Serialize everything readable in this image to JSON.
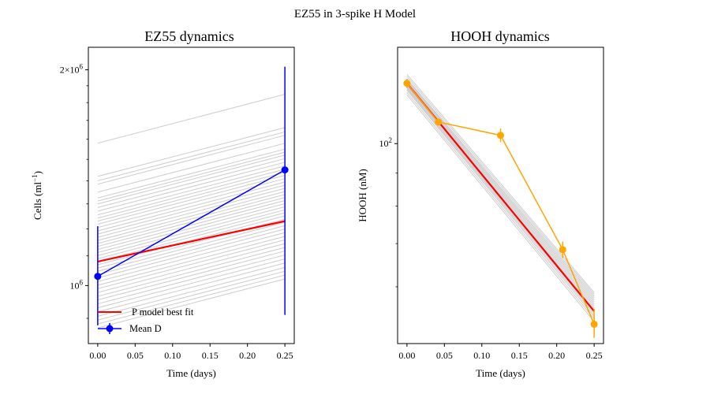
{
  "figure": {
    "title": "EZ55 in 3-spike H Model"
  },
  "chart_data": [
    {
      "type": "line",
      "title": "EZ55 dynamics",
      "xlabel": "Time (days)",
      "ylabel": "Cells (ml$^{-1}$)",
      "ylabel_base": "Cells (ml",
      "ylabel_sup": "−1",
      "ylabel_end": ")",
      "yscale": "log",
      "xlim": [
        -0.0125,
        0.2625
      ],
      "ylim": [
        830000,
        2150000
      ],
      "x_ticks": [
        0.0,
        0.05,
        0.1,
        0.15,
        0.2,
        0.25
      ],
      "x_tick_labels": [
        "0.00",
        "0.05",
        "0.10",
        "0.15",
        "0.20",
        "0.25"
      ],
      "y_major_ticks": [
        {
          "value": 1000000,
          "base": "10",
          "exp": "6",
          "prefix": ""
        },
        {
          "value": 2000000,
          "base": "10",
          "exp": "6",
          "prefix": "2×"
        }
      ],
      "y_minor_ticks": [
        900000,
        1100000,
        1200000,
        1300000,
        1400000,
        1500000,
        1600000,
        1700000,
        1800000,
        1900000
      ],
      "legend_position": "lower-left",
      "model_runs": {
        "color": "#cccccc",
        "x": [
          0.0,
          0.25
        ],
        "y0": [
          1580000,
          1420000,
          1400000,
          1385000,
          1350000,
          1325000,
          1312000,
          1300000,
          1285000,
          1270000,
          1255000,
          1242000,
          1230000,
          1218000,
          1205000,
          1192000,
          1180000,
          1168000,
          1156000,
          1145000,
          1134000,
          1123000,
          1112000,
          1101000,
          1090000,
          1080000,
          1069000,
          1058000,
          1047000,
          1036000,
          1025000,
          1013000,
          1001000,
          990000,
          978000,
          966000,
          955000,
          943000,
          931000,
          919000,
          906000,
          895000,
          884000,
          873000
        ],
        "growth": 1.17
      },
      "series": [
        {
          "name": "P model best fit",
          "color": "#ff0000",
          "x": [
            0.0,
            0.25
          ],
          "y": [
            1080000,
            1230000
          ]
        },
        {
          "name": "Mean D",
          "color": "#0000ff",
          "x": [
            0.0,
            0.25
          ],
          "y": [
            1030000,
            1450000
          ],
          "yerr_low": [
            880000,
            910000
          ],
          "yerr_high": [
            1210000,
            2020000
          ]
        }
      ]
    },
    {
      "type": "line",
      "title": "HOOH dynamics",
      "xlabel": "Time (days)",
      "ylabel": "HOOH (nM)",
      "yscale": "log",
      "xlim": [
        -0.0125,
        0.2625
      ],
      "ylim": [
        49,
        141
      ],
      "x_ticks": [
        0.0,
        0.05,
        0.1,
        0.15,
        0.2,
        0.25
      ],
      "x_tick_labels": [
        "0.00",
        "0.05",
        "0.10",
        "0.15",
        "0.20",
        "0.25"
      ],
      "y_major_ticks": [
        {
          "value": 100,
          "base": "10",
          "exp": "2",
          "prefix": ""
        }
      ],
      "y_minor_ticks": [
        60,
        70,
        80,
        90
      ],
      "model_runs": {
        "color": "#cccccc",
        "x": [
          0.0,
          0.25
        ],
        "y0": [
          128,
          127,
          126,
          125.5,
          125,
          124.5,
          124,
          123.5,
          123,
          122.5,
          122,
          121.5,
          121,
          120,
          119
        ],
        "y1": [
          58.8,
          58.4,
          58,
          57.6,
          57.2,
          56.8,
          56.4,
          56,
          55.6,
          55.2,
          54.8,
          54.4,
          54,
          53.5,
          53
        ]
      },
      "series": [
        {
          "name": "",
          "color": "#ff0000",
          "x": [
            0.0,
            0.25
          ],
          "y": [
            124,
            55
          ]
        },
        {
          "name": "",
          "color": "#ffa500",
          "x": [
            0.0,
            0.042,
            0.125,
            0.208,
            0.25
          ],
          "y": [
            124,
            108,
            103,
            68.5,
            52.5
          ],
          "yerr_low": [
            122,
            107,
            100.5,
            66.5,
            50
          ],
          "yerr_high": [
            126,
            109,
            105.5,
            70.5,
            55.5
          ]
        }
      ]
    }
  ]
}
